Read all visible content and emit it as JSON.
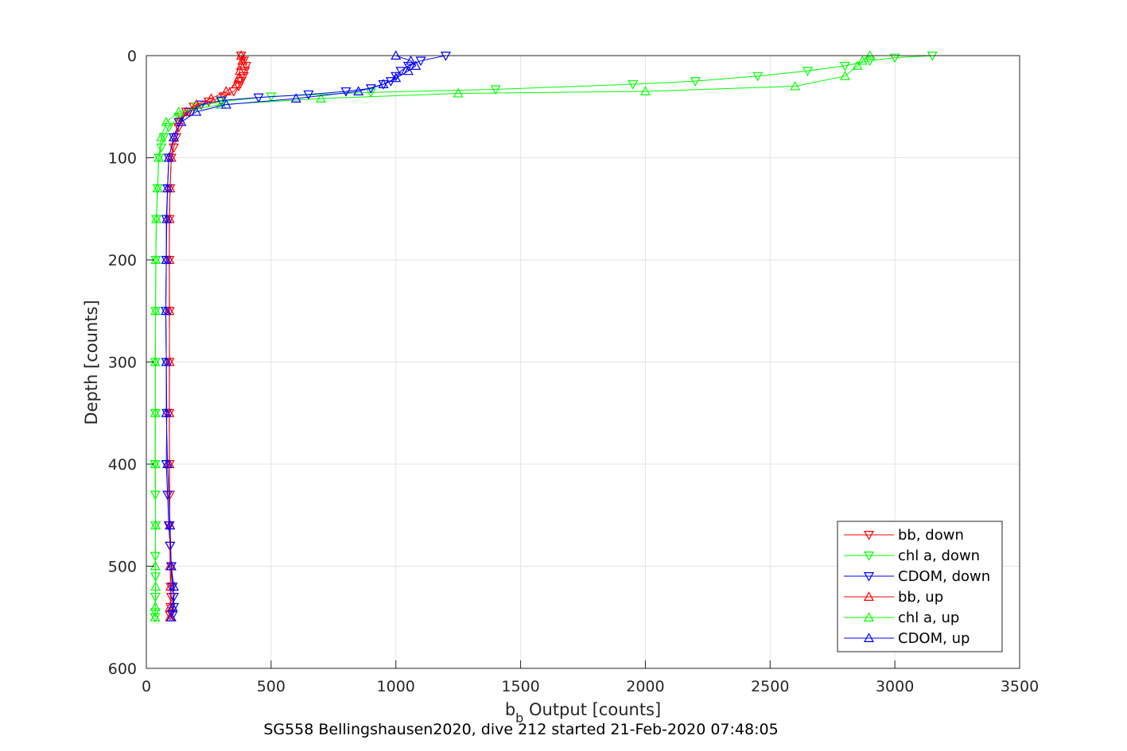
{
  "chart_data": {
    "type": "line",
    "xlabel_main": "b",
    "xlabel_sub": "b",
    "xlabel_rest": " Output [counts]",
    "ylabel": "Depth [counts]",
    "caption": "SG558 Bellingshausen2020, dive 212 started 21-Feb-2020 07:48:05",
    "xlim": [
      0,
      3500
    ],
    "ylim": [
      0,
      600
    ],
    "y_reversed": true,
    "grid": true,
    "legend_position": "bottom-right",
    "xticks": [
      "0",
      "500",
      "1000",
      "1500",
      "2000",
      "2500",
      "3000",
      "3500"
    ],
    "yticks": [
      "0",
      "100",
      "200",
      "300",
      "400",
      "500",
      "600"
    ],
    "series": [
      {
        "name": "bb, down",
        "color": "#ff0000",
        "marker": "down",
        "x": [
          380,
          390,
          400,
          395,
          390,
          380,
          370,
          350,
          310,
          250,
          190,
          160,
          140,
          130,
          120,
          110,
          100,
          95,
          92,
          92,
          93,
          92,
          92,
          93,
          94,
          93,
          95,
          100,
          98,
          100,
          97,
          95
        ],
        "y": [
          0,
          5,
          10,
          15,
          20,
          25,
          30,
          35,
          40,
          45,
          50,
          55,
          60,
          70,
          80,
          90,
          100,
          130,
          160,
          200,
          250,
          300,
          350,
          400,
          430,
          460,
          480,
          500,
          520,
          530,
          540,
          548
        ]
      },
      {
        "name": "chl a, down",
        "color": "#00ff00",
        "marker": "down",
        "x": [
          3150,
          3000,
          2900,
          2800,
          2650,
          2450,
          2200,
          1950,
          1400,
          900,
          500,
          300,
          200,
          130,
          90,
          70,
          60,
          50,
          45,
          40,
          38,
          37,
          36,
          36,
          35,
          36,
          37,
          36,
          37,
          36,
          36,
          35
        ],
        "y": [
          0,
          2,
          5,
          10,
          15,
          20,
          25,
          28,
          33,
          36,
          40,
          45,
          50,
          60,
          70,
          80,
          90,
          100,
          130,
          160,
          200,
          250,
          300,
          350,
          400,
          430,
          460,
          490,
          510,
          530,
          545,
          550
        ]
      },
      {
        "name": "CDOM, down",
        "color": "#0000ff",
        "marker": "down",
        "x": [
          1200,
          1100,
          1050,
          1020,
          1000,
          980,
          950,
          900,
          800,
          650,
          450,
          300,
          220,
          170,
          130,
          110,
          90,
          85,
          80,
          80,
          78,
          80,
          82,
          80,
          85,
          90,
          95,
          100,
          105,
          110,
          110,
          105
        ],
        "y": [
          0,
          5,
          10,
          15,
          20,
          25,
          28,
          32,
          35,
          38,
          41,
          44,
          48,
          55,
          65,
          80,
          100,
          130,
          160,
          200,
          250,
          300,
          350,
          400,
          430,
          460,
          480,
          500,
          520,
          530,
          540,
          548
        ]
      },
      {
        "name": "bb, up",
        "color": "#ff0000",
        "marker": "up",
        "x": [
          95,
          96,
          97,
          95,
          94,
          92,
          92,
          93,
          92,
          92,
          93,
          95,
          100,
          110,
          130,
          160,
          200,
          260,
          320,
          360,
          370,
          375,
          380,
          385,
          380
        ],
        "y": [
          550,
          540,
          520,
          500,
          460,
          400,
          350,
          300,
          250,
          200,
          160,
          130,
          100,
          80,
          65,
          55,
          48,
          42,
          35,
          28,
          22,
          15,
          10,
          5,
          0
        ]
      },
      {
        "name": "chl a, up",
        "color": "#00ff00",
        "marker": "up",
        "x": [
          35,
          36,
          37,
          36,
          37,
          36,
          36,
          36,
          37,
          38,
          40,
          45,
          50,
          60,
          80,
          130,
          300,
          700,
          1250,
          2000,
          2600,
          2800,
          2850,
          2870,
          2900
        ],
        "y": [
          550,
          540,
          520,
          500,
          460,
          400,
          350,
          300,
          250,
          200,
          160,
          130,
          100,
          80,
          65,
          55,
          48,
          42,
          37,
          35,
          30,
          20,
          10,
          5,
          0
        ]
      },
      {
        "name": "CDOM, up",
        "color": "#0000ff",
        "marker": "up",
        "x": [
          100,
          105,
          110,
          100,
          95,
          85,
          80,
          80,
          78,
          80,
          82,
          85,
          90,
          110,
          140,
          200,
          320,
          600,
          850,
          950,
          1000,
          1050,
          1080,
          1060,
          1000
        ],
        "y": [
          550,
          540,
          520,
          500,
          460,
          400,
          350,
          300,
          250,
          200,
          160,
          130,
          100,
          80,
          65,
          55,
          48,
          42,
          35,
          28,
          22,
          15,
          10,
          5,
          0
        ]
      }
    ]
  }
}
